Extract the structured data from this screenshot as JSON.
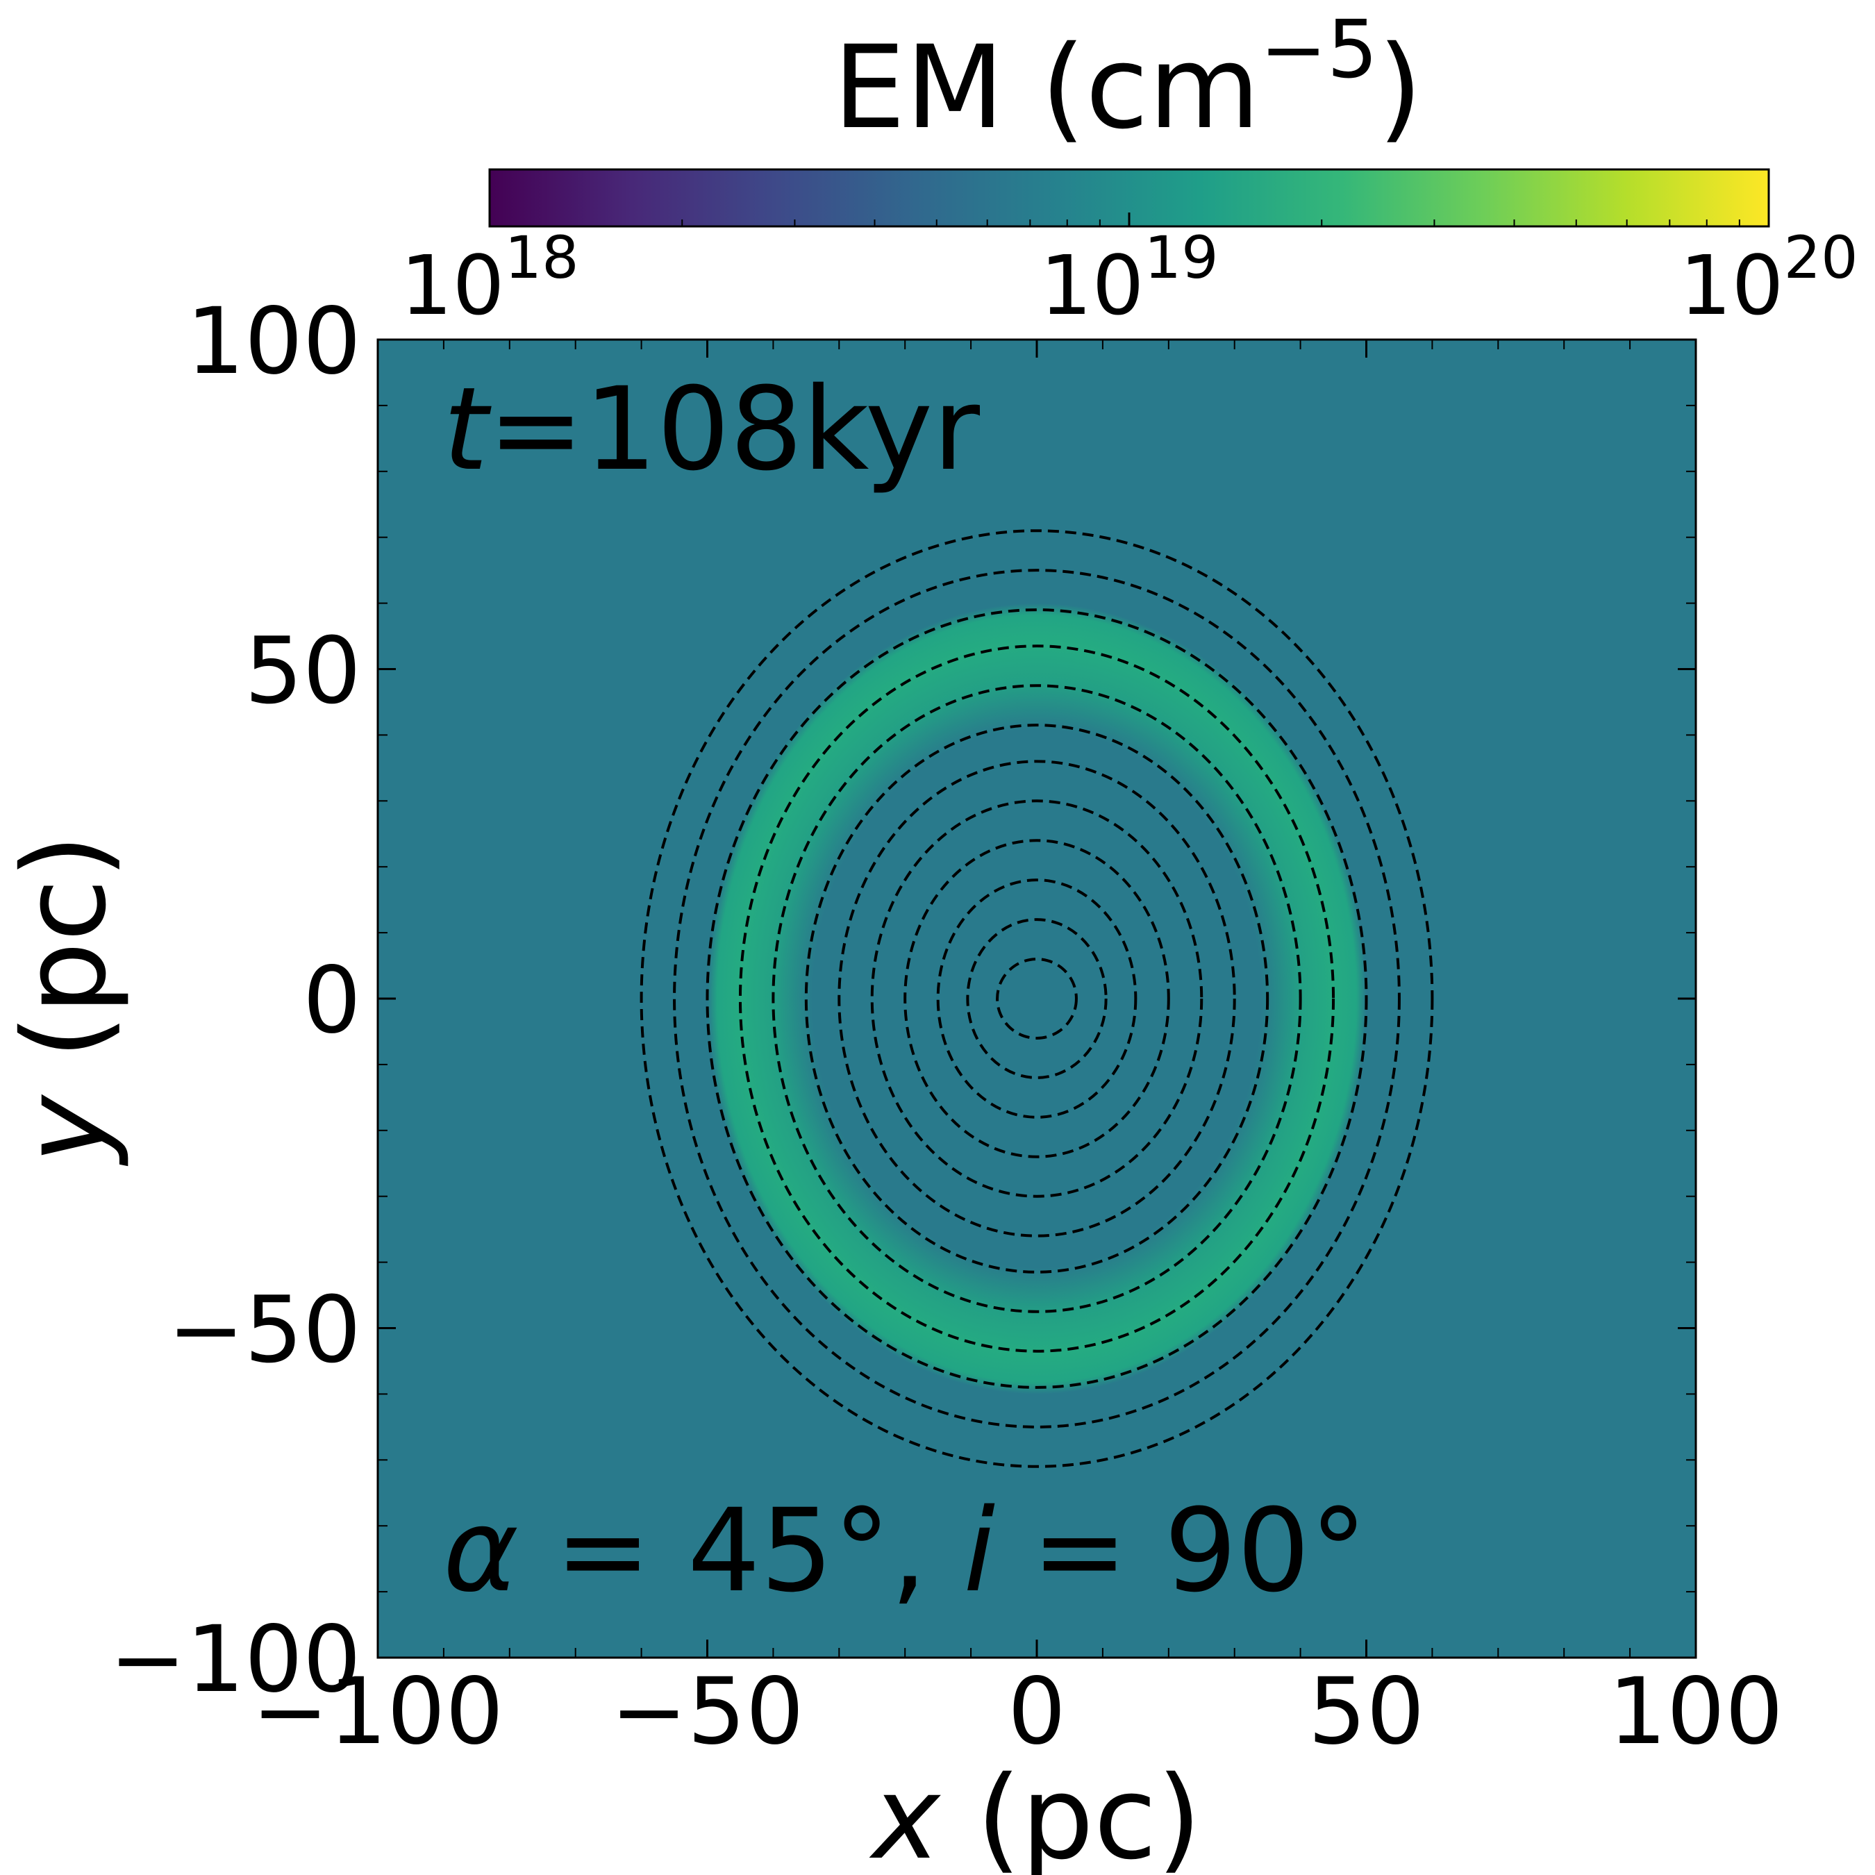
{
  "chart_data": {
    "type": "heatmap",
    "xlabel": "(pc)",
    "xlabel_var": "x",
    "ylabel": "(pc)",
    "ylabel_var": "y",
    "xlim": [
      -100,
      100
    ],
    "ylim": [
      -100,
      100
    ],
    "x_ticks": [
      -100,
      -50,
      0,
      50,
      100
    ],
    "y_ticks": [
      -100,
      -50,
      0,
      50,
      100
    ],
    "x_tick_labels": [
      "−100",
      "−50",
      "0",
      "50",
      "100"
    ],
    "y_tick_labels": [
      "−100",
      "−50",
      "0",
      "50",
      "100"
    ],
    "colorbar": {
      "label": "EM (cm",
      "label_exp": "−5",
      "label_close": ")",
      "scale": "log",
      "range": [
        1e+18,
        1e+20
      ],
      "ticks": [
        {
          "base": "10",
          "exp": "18",
          "value": 1e+18
        },
        {
          "base": "10",
          "exp": "19",
          "value": 1e+19
        },
        {
          "base": "10",
          "exp": "20",
          "value": 1e+20
        }
      ],
      "colormap": "viridis",
      "colormap_stops": [
        "#440154",
        "#482878",
        "#3e4989",
        "#31688e",
        "#26828e",
        "#1f9e89",
        "#35b779",
        "#6ece58",
        "#b5de2b",
        "#fde725"
      ]
    },
    "annotations": {
      "time_var": "t",
      "time_rest": "=108kyr",
      "angles": [
        {
          "var": "α",
          "rest": " = 45°, "
        },
        {
          "var": "i",
          "rest": " = 90°"
        }
      ]
    },
    "background": {
      "em": 7e+18,
      "color": "#297a8c"
    },
    "emission_shell": {
      "shape": "ellipse",
      "center": [
        0,
        0
      ],
      "outer_semi_axes": [
        50,
        60
      ],
      "inner_semi_axes": [
        40,
        50
      ],
      "peak_em": 2e+19,
      "peak_color": "#25ab82",
      "interior_em": 7e+18
    },
    "contours": {
      "style": "dashed",
      "color": "#000000",
      "center": [
        0,
        0
      ],
      "semi_axes": [
        [
          6,
          6
        ],
        [
          10.5,
          12
        ],
        [
          15,
          18
        ],
        [
          20,
          24
        ],
        [
          25,
          30
        ],
        [
          30,
          36
        ],
        [
          35,
          41.5
        ],
        [
          40,
          47.5
        ],
        [
          45,
          53.5
        ],
        [
          50,
          59
        ],
        [
          55,
          65
        ],
        [
          60,
          71
        ]
      ]
    }
  }
}
